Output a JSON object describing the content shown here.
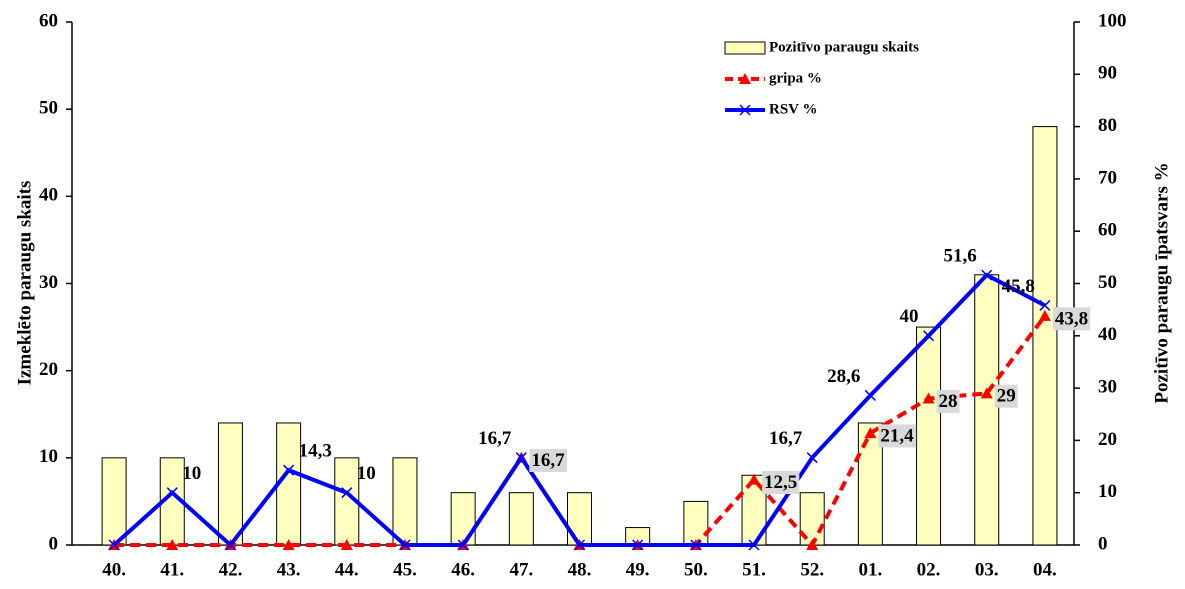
{
  "chart_data": {
    "type": "combo",
    "categories": [
      "40.",
      "41.",
      "42.",
      "43.",
      "44.",
      "45.",
      "46.",
      "47.",
      "48.",
      "49.",
      "50.",
      "51.",
      "52.",
      "01.",
      "02.",
      "03.",
      "04."
    ],
    "y_label": "Izmeklēto paraugu skaits",
    "y2_label": "Pozitīvo paraugu īpatsvars %",
    "ylim": [
      0,
      60
    ],
    "yticks": [
      0,
      10,
      20,
      30,
      40,
      50,
      60
    ],
    "y2lim": [
      0,
      100
    ],
    "y2ticks": [
      0,
      10,
      20,
      30,
      40,
      50,
      60,
      70,
      80,
      90,
      100
    ],
    "legend": "upper right",
    "series": [
      {
        "name": "Pozitīvo paraugu skaits",
        "type": "bar",
        "color": "#ffffc0",
        "values": [
          10,
          10,
          14,
          14,
          10,
          10,
          6,
          6,
          6,
          2,
          5,
          8,
          6,
          14,
          25,
          31,
          48
        ]
      },
      {
        "name": "gripa %",
        "type": "line",
        "axis": "y2",
        "color": "#ff0000",
        "dash": true,
        "marker": "triangle",
        "values": [
          0,
          0,
          0,
          0,
          0,
          0,
          0,
          16.7,
          0,
          0,
          0,
          12.5,
          0,
          21.4,
          28,
          29,
          43.8
        ],
        "value_labels": [
          null,
          null,
          null,
          null,
          null,
          null,
          null,
          "16,7",
          null,
          null,
          null,
          "12,5",
          null,
          "21,4",
          "28",
          "29",
          "43,8"
        ]
      },
      {
        "name": "RSV %",
        "type": "line",
        "axis": "y2",
        "color": "#0000ff",
        "dash": false,
        "marker": "x",
        "values": [
          0,
          10,
          0,
          14.3,
          10,
          0,
          0,
          16.7,
          0,
          0,
          0,
          0,
          16.7,
          28.6,
          40,
          51.6,
          45.8
        ],
        "value_labels": [
          null,
          "10",
          null,
          "14,3",
          "10",
          null,
          null,
          "16,7",
          null,
          null,
          null,
          null,
          "16,7",
          "28,6",
          "40",
          "51,6",
          "45,8"
        ]
      }
    ]
  }
}
